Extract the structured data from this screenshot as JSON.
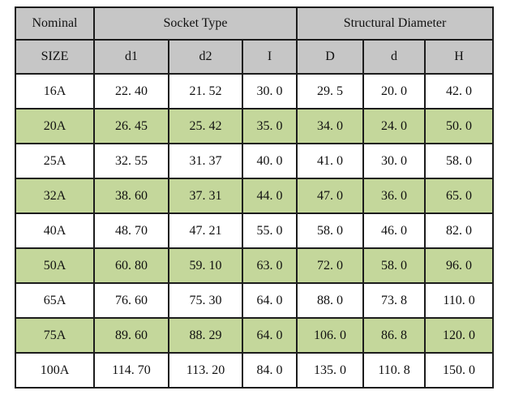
{
  "table": {
    "header_groups": [
      {
        "label": "Nominal",
        "colspan": 1
      },
      {
        "label": "Socket Type",
        "colspan": 3
      },
      {
        "label": "Structural Diameter",
        "colspan": 3
      }
    ],
    "columns": [
      "SIZE",
      "d1",
      "d2",
      "I",
      "D",
      "d",
      "H"
    ],
    "rows": [
      {
        "cells": [
          "16A",
          "22.40",
          "21.52",
          "30.0",
          "29.5",
          "20.0",
          "42.0"
        ]
      },
      {
        "cells": [
          "20A",
          "26.45",
          "25.42",
          "35.0",
          "34.0",
          "24.0",
          "50.0"
        ]
      },
      {
        "cells": [
          "25A",
          "32.55",
          "31.37",
          "40.0",
          "41.0",
          "30.0",
          "58.0"
        ]
      },
      {
        "cells": [
          "32A",
          "38.60",
          "37.31",
          "44.0",
          "47.0",
          "36.0",
          "65.0"
        ]
      },
      {
        "cells": [
          "40A",
          "48.70",
          "47.21",
          "55.0",
          "58.0",
          "46.0",
          "82.0"
        ]
      },
      {
        "cells": [
          "50A",
          "60.80",
          "59.10",
          "63.0",
          "72.0",
          "58.0",
          "96.0"
        ]
      },
      {
        "cells": [
          "65A",
          "76.60",
          "75.30",
          "64.0",
          "88.0",
          "73.8",
          "110.0"
        ]
      },
      {
        "cells": [
          "75A",
          "89.60",
          "88.29",
          "64.0",
          "106.0",
          "86.8",
          "120.0"
        ]
      },
      {
        "cells": [
          "100A",
          "114.70",
          "113.20",
          "84.0",
          "135.0",
          "110.8",
          "150.0"
        ]
      }
    ],
    "colors": {
      "header_bg": "#c6c6c6",
      "row_bg": "#ffffff",
      "row_alt_bg": "#c4d79b",
      "border": "#1c1c1c"
    }
  }
}
